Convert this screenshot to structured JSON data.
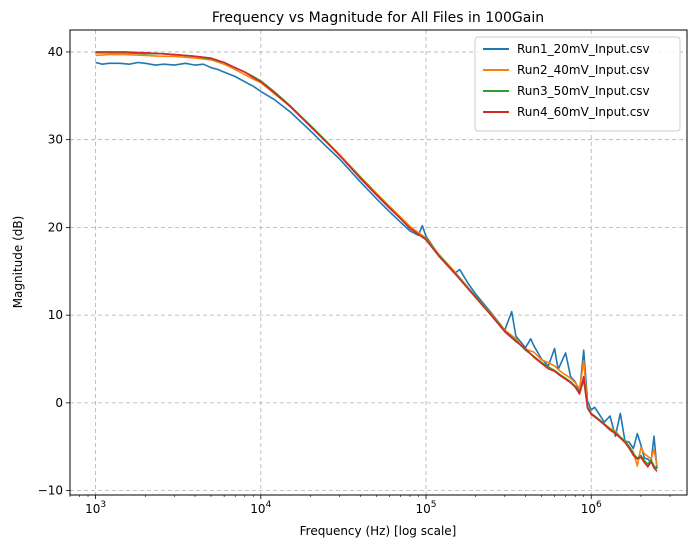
{
  "chart_data": {
    "type": "line",
    "title": "Frequency vs Magnitude for All Files in 100Gain",
    "xlabel": "Frequency (Hz) [log scale]",
    "ylabel": "Magnitude (dB)",
    "xscale": "log",
    "xlim": [
      700,
      3800000
    ],
    "ylim": [
      -10.5,
      42.5
    ],
    "xticks": [
      {
        "value": 1000,
        "base": "10",
        "exp": "3"
      },
      {
        "value": 10000,
        "base": "10",
        "exp": "4"
      },
      {
        "value": 100000,
        "base": "10",
        "exp": "5"
      },
      {
        "value": 1000000,
        "base": "10",
        "exp": "6"
      }
    ],
    "yticks": [
      {
        "value": -10,
        "label": "−10"
      },
      {
        "value": 0,
        "label": "0"
      },
      {
        "value": 10,
        "label": "10"
      },
      {
        "value": 20,
        "label": "20"
      },
      {
        "value": 30,
        "label": "30"
      },
      {
        "value": 40,
        "label": "40"
      }
    ],
    "grid": true,
    "legend_position": "top-right",
    "series": [
      {
        "name": "Run1_20mV_Input.csv",
        "color": "#1f77b4",
        "x": [
          1000,
          1100,
          1200,
          1400,
          1600,
          1800,
          2000,
          2300,
          2600,
          3000,
          3500,
          4000,
          4500,
          5000,
          5500,
          6000,
          7000,
          8000,
          9000,
          10000,
          12000,
          15000,
          20000,
          25000,
          30000,
          40000,
          50000,
          60000,
          70000,
          80000,
          90000,
          95000,
          100000,
          120000,
          150000,
          160000,
          180000,
          200000,
          250000,
          300000,
          330000,
          350000,
          400000,
          430000,
          450000,
          500000,
          550000,
          600000,
          630000,
          700000,
          750000,
          800000,
          850000,
          900000,
          950000,
          1000000,
          1050000,
          1100000,
          1200000,
          1300000,
          1400000,
          1500000,
          1600000,
          1700000,
          1800000,
          1900000,
          2000000,
          2100000,
          2200000,
          2300000,
          2400000,
          2500000
        ],
        "y": [
          38.8,
          38.6,
          38.7,
          38.7,
          38.6,
          38.8,
          38.7,
          38.5,
          38.6,
          38.5,
          38.7,
          38.5,
          38.6,
          38.2,
          38.0,
          37.7,
          37.2,
          36.6,
          36.1,
          35.5,
          34.6,
          33.2,
          31.0,
          29.2,
          27.8,
          25.2,
          23.3,
          21.8,
          20.6,
          19.6,
          19.1,
          20.2,
          19.0,
          16.8,
          14.8,
          15.2,
          13.6,
          12.4,
          10.2,
          8.3,
          10.4,
          7.6,
          6.3,
          7.3,
          6.5,
          5.0,
          4.2,
          6.2,
          3.8,
          5.7,
          3.0,
          2.4,
          1.3,
          6.0,
          0.2,
          -0.8,
          -0.5,
          -1.1,
          -2.2,
          -1.5,
          -3.8,
          -1.2,
          -4.3,
          -4.5,
          -5.2,
          -3.5,
          -4.8,
          -6.3,
          -6.4,
          -6.8,
          -3.8,
          -7.5
        ]
      },
      {
        "name": "Run2_40mV_Input.csv",
        "color": "#ff7f0e",
        "x": [
          1000,
          1200,
          1500,
          2000,
          2500,
          3000,
          4000,
          5000,
          6000,
          7000,
          8000,
          9000,
          10000,
          12000,
          15000,
          20000,
          25000,
          30000,
          40000,
          50000,
          60000,
          70000,
          80000,
          90000,
          100000,
          120000,
          150000,
          200000,
          250000,
          300000,
          350000,
          400000,
          450000,
          500000,
          550000,
          600000,
          650000,
          700000,
          750000,
          800000,
          850000,
          900000,
          950000,
          1000000,
          1100000,
          1200000,
          1300000,
          1400000,
          1500000,
          1600000,
          1700000,
          1800000,
          1900000,
          2000000,
          2100000,
          2200000,
          2300000,
          2400000,
          2500000
        ],
        "y": [
          39.6,
          39.7,
          39.7,
          39.6,
          39.5,
          39.5,
          39.3,
          39.1,
          38.6,
          38.0,
          37.4,
          36.9,
          36.5,
          35.3,
          33.8,
          31.6,
          29.8,
          28.3,
          25.8,
          23.9,
          22.4,
          21.2,
          20.1,
          19.4,
          18.8,
          16.9,
          14.9,
          12.1,
          10.1,
          8.3,
          7.3,
          6.1,
          5.8,
          4.9,
          4.6,
          4.2,
          3.6,
          3.2,
          2.8,
          2.3,
          1.6,
          4.8,
          -0.4,
          -1.2,
          -1.8,
          -2.4,
          -2.9,
          -3.2,
          -3.9,
          -4.3,
          -5.0,
          -5.6,
          -7.2,
          -5.1,
          -5.8,
          -6.1,
          -6.4,
          -5.3,
          -7.2
        ]
      },
      {
        "name": "Run3_50mV_Input.csv",
        "color": "#2ca02c",
        "x": [
          1000,
          1200,
          1500,
          2000,
          2500,
          3000,
          4000,
          5000,
          6000,
          7000,
          8000,
          9000,
          10000,
          12000,
          15000,
          20000,
          25000,
          30000,
          40000,
          50000,
          60000,
          70000,
          80000,
          90000,
          100000,
          120000,
          150000,
          200000,
          250000,
          300000,
          350000,
          400000,
          450000,
          500000,
          550000,
          600000,
          650000,
          700000,
          750000,
          800000,
          850000,
          900000,
          950000,
          1000000,
          1100000,
          1200000,
          1300000,
          1400000,
          1500000,
          1600000,
          1700000,
          1800000,
          1900000,
          2000000,
          2100000,
          2200000,
          2300000,
          2400000,
          2500000
        ],
        "y": [
          39.9,
          39.9,
          39.9,
          39.8,
          39.8,
          39.7,
          39.5,
          39.2,
          38.8,
          38.2,
          37.7,
          37.2,
          36.7,
          35.5,
          33.9,
          31.6,
          29.8,
          28.2,
          25.7,
          23.8,
          22.3,
          21.0,
          19.9,
          19.2,
          18.7,
          16.8,
          14.8,
          12.1,
          10.0,
          8.2,
          7.1,
          6.0,
          5.3,
          4.6,
          4.1,
          3.7,
          3.2,
          2.8,
          2.4,
          1.9,
          1.1,
          2.6,
          -0.5,
          -1.2,
          -1.8,
          -2.4,
          -3.0,
          -3.4,
          -3.9,
          -4.4,
          -5.0,
          -5.8,
          -6.3,
          -6.0,
          -6.6,
          -7.0,
          -6.5,
          -7.2,
          -7.5
        ]
      },
      {
        "name": "Run4_60mV_Input.csv",
        "color": "#d62728",
        "x": [
          1000,
          1200,
          1500,
          2000,
          2500,
          3000,
          4000,
          5000,
          6000,
          7000,
          8000,
          9000,
          10000,
          12000,
          15000,
          20000,
          25000,
          30000,
          40000,
          50000,
          60000,
          70000,
          80000,
          90000,
          100000,
          120000,
          150000,
          200000,
          250000,
          300000,
          350000,
          400000,
          450000,
          500000,
          550000,
          600000,
          650000,
          700000,
          750000,
          800000,
          850000,
          900000,
          950000,
          1000000,
          1100000,
          1200000,
          1300000,
          1400000,
          1500000,
          1600000,
          1700000,
          1800000,
          1900000,
          2000000,
          2100000,
          2200000,
          2300000,
          2400000,
          2500000
        ],
        "y": [
          40.0,
          40.0,
          40.0,
          39.9,
          39.8,
          39.7,
          39.5,
          39.3,
          38.8,
          38.2,
          37.7,
          37.1,
          36.6,
          35.4,
          33.8,
          31.5,
          29.7,
          28.2,
          25.6,
          23.7,
          22.2,
          21.0,
          19.9,
          19.2,
          18.6,
          16.7,
          14.7,
          12.0,
          9.9,
          8.1,
          7.0,
          6.2,
          5.2,
          4.5,
          3.9,
          3.6,
          3.1,
          2.7,
          2.3,
          1.8,
          1.0,
          3.0,
          -0.6,
          -1.3,
          -1.9,
          -2.5,
          -3.1,
          -3.5,
          -4.0,
          -4.5,
          -5.2,
          -6.0,
          -6.4,
          -6.2,
          -6.8,
          -7.3,
          -6.7,
          -7.4,
          -7.8
        ]
      }
    ]
  }
}
